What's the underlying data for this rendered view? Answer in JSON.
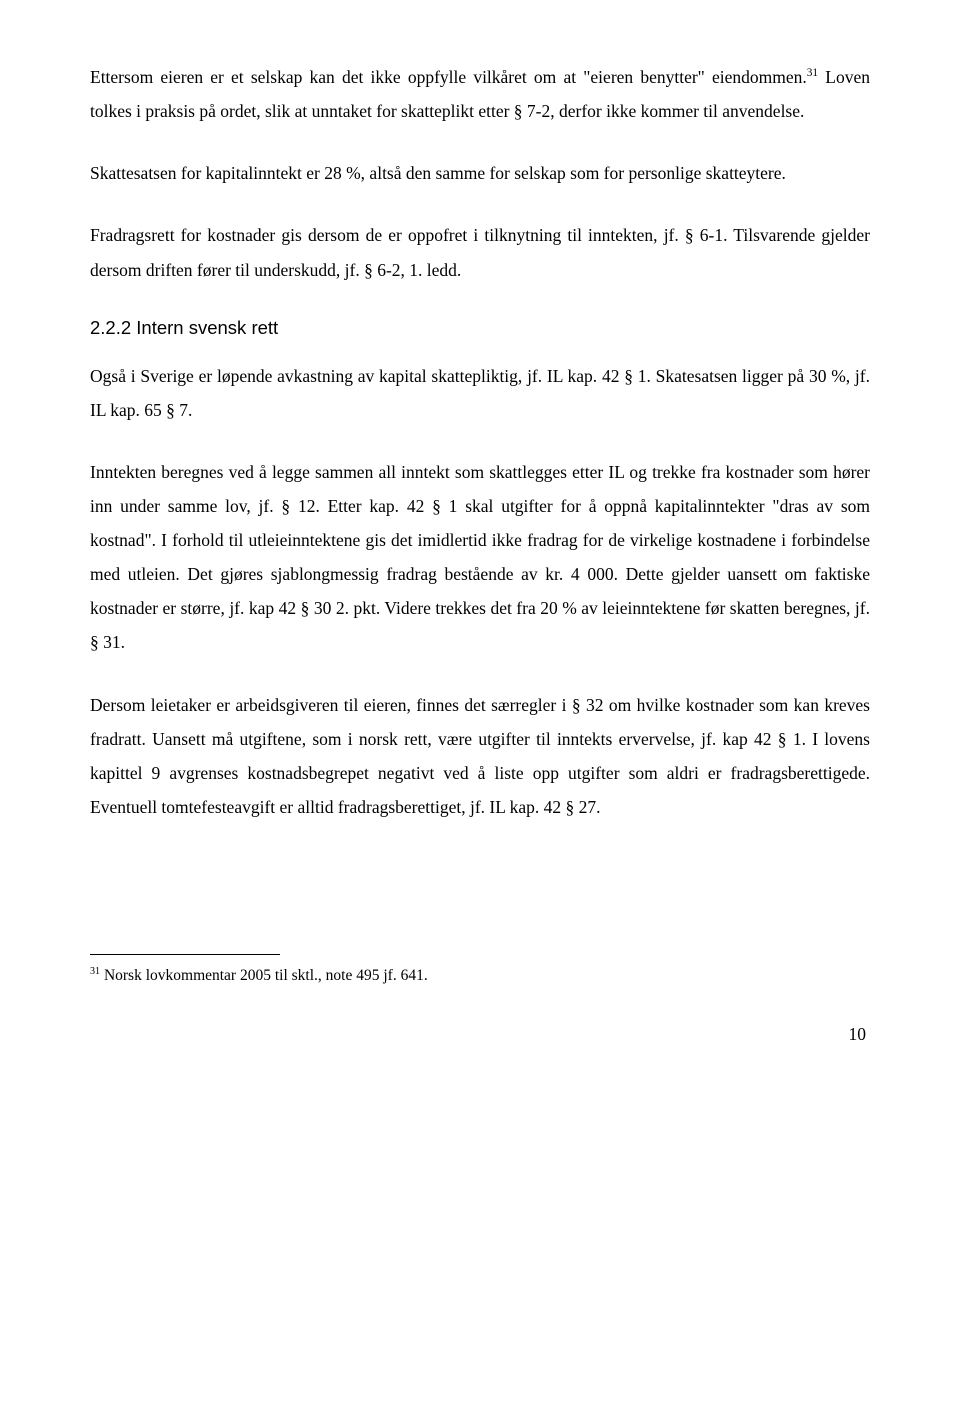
{
  "para1_a": "Ettersom eieren er et selskap kan det ikke oppfylle vilkåret om at \"eieren benytter\" eiendommen.",
  "para1_sup": "31",
  "para1_b": " Loven tolkes i praksis på ordet, slik at unntaket for skatteplikt etter § 7-2, derfor ikke kommer til anvendelse.",
  "para2": "Skattesatsen for kapitalinntekt er 28 %, altså den samme for selskap som for personlige skatteytere.",
  "para3": "Fradragsrett for kostnader gis dersom de er oppofret i tilknytning til inntekten, jf. § 6-1. Tilsvarende gjelder dersom driften fører til underskudd, jf. § 6-2, 1. ledd.",
  "heading_222": "2.2.2  Intern svensk rett",
  "para4": "Også i Sverige er løpende avkastning av kapital skattepliktig, jf. IL kap. 42 § 1. Skatesatsen ligger på 30 %, jf. IL kap. 65 § 7.",
  "para5": "Inntekten beregnes ved å legge sammen all inntekt som skattlegges etter IL og trekke fra kostnader som hører inn under samme lov, jf. § 12. Etter kap. 42 § 1 skal utgifter for å oppnå kapitalinntekter \"dras av som kostnad\". I forhold til utleieinntektene gis det imidlertid ikke fradrag for de virkelige kostnadene i forbindelse med utleien. Det gjøres sjablongmessig fradrag bestående av kr. 4 000. Dette gjelder uansett om faktiske kostnader er større, jf. kap 42 § 30 2. pkt. Videre trekkes det fra 20 % av leieinntektene før skatten beregnes, jf. § 31.",
  "para6": "Dersom leietaker er arbeidsgiveren til eieren, finnes det særregler i § 32 om hvilke kostnader som kan kreves fradratt. Uansett må utgiftene, som i norsk rett, være utgifter til inntekts ervervelse, jf. kap 42 § 1. I lovens kapittel 9 avgrenses kostnadsbegrepet negativt ved å liste opp utgifter som aldri er fradragsberettigede. Eventuell tomtefesteavgift er alltid fradragsberettiget, jf. IL kap. 42 § 27.",
  "footnote_sup": "31",
  "footnote": " Norsk lovkommentar 2005 til sktl., note 495 jf. 641.",
  "page_number": "10"
}
